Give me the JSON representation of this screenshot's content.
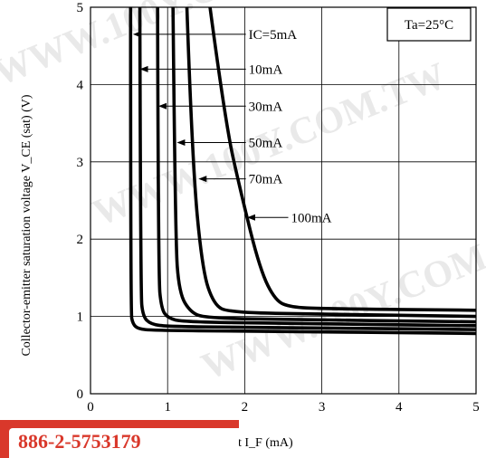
{
  "chart_data": {
    "type": "line",
    "xlabel": "Forward current I_F (mA)",
    "ylabel": "Collector-emitter saturation voltage V_CE (sat) (V)",
    "xlim": [
      0,
      5
    ],
    "ylim": [
      0,
      5
    ],
    "x_ticks": [
      "0",
      "1",
      "2",
      "3",
      "4",
      "5"
    ],
    "y_ticks": [
      "0",
      "1",
      "2",
      "3",
      "4",
      "5"
    ],
    "grid": true,
    "annotation": "Ta=25°C",
    "series": [
      {
        "name": "IC=5mA",
        "x": [
          0.52,
          0.52,
          0.55,
          0.62,
          0.8,
          2.0,
          5.0
        ],
        "y": [
          5.0,
          1.05,
          0.9,
          0.84,
          0.82,
          0.81,
          0.78
        ]
      },
      {
        "name": "10mA",
        "x": [
          0.64,
          0.65,
          0.68,
          0.78,
          1.0,
          2.0,
          5.0
        ],
        "y": [
          5.0,
          1.3,
          1.0,
          0.9,
          0.87,
          0.86,
          0.83
        ]
      },
      {
        "name": "30mA",
        "x": [
          0.87,
          0.88,
          0.92,
          1.0,
          1.2,
          2.5,
          5.0
        ],
        "y": [
          5.0,
          1.5,
          1.1,
          0.98,
          0.93,
          0.91,
          0.88
        ]
      },
      {
        "name": "50mA",
        "x": [
          1.07,
          1.1,
          1.15,
          1.3,
          1.5,
          2.5,
          5.0
        ],
        "y": [
          5.0,
          2.0,
          1.3,
          1.05,
          0.98,
          0.96,
          0.93
        ]
      },
      {
        "name": "70mA",
        "x": [
          1.25,
          1.32,
          1.45,
          1.6,
          1.8,
          3.0,
          5.0
        ],
        "y": [
          5.0,
          3.0,
          1.6,
          1.15,
          1.05,
          1.03,
          1.0
        ]
      },
      {
        "name": "100mA",
        "x": [
          1.55,
          1.75,
          1.95,
          2.2,
          2.4,
          2.6,
          3.0,
          5.0
        ],
        "y": [
          5.0,
          3.5,
          2.6,
          1.6,
          1.2,
          1.12,
          1.1,
          1.08
        ]
      }
    ],
    "labels": [
      {
        "text": "IC=5mA",
        "arrow_to": [
          0.55,
          4.65
        ],
        "text_at": [
          2.05,
          4.65
        ]
      },
      {
        "text": "10mA",
        "arrow_to": [
          0.64,
          4.2
        ],
        "text_at": [
          2.05,
          4.2
        ]
      },
      {
        "text": "30mA",
        "arrow_to": [
          0.88,
          3.72
        ],
        "text_at": [
          2.05,
          3.72
        ]
      },
      {
        "text": "50mA",
        "arrow_to": [
          1.12,
          3.25
        ],
        "text_at": [
          2.05,
          3.25
        ]
      },
      {
        "text": "70mA",
        "arrow_to": [
          1.4,
          2.78
        ],
        "text_at": [
          2.05,
          2.78
        ]
      },
      {
        "text": "100mA",
        "arrow_to": [
          2.03,
          2.28
        ],
        "text_at": [
          2.6,
          2.28
        ]
      }
    ]
  },
  "watermark": "WWW.100Y.COM.TW",
  "badge": {
    "text": "886-2-5753179"
  }
}
